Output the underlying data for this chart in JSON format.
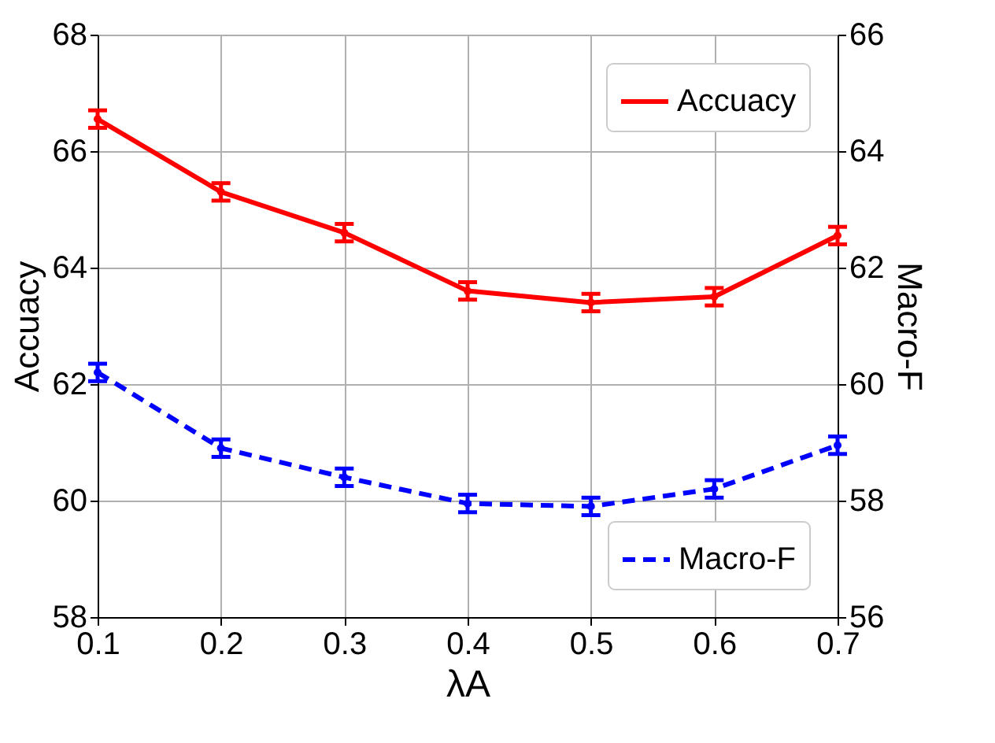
{
  "chart_data": {
    "type": "line",
    "xlabel": "λA",
    "ylabel": "Accuacy",
    "y2label": "Macro-F",
    "x": [
      0.1,
      0.2,
      0.3,
      0.4,
      0.5,
      0.6,
      0.7
    ],
    "series": [
      {
        "name": "Accuacy",
        "color": "#ff0000",
        "line_style": "solid",
        "values": [
          66.55,
          65.3,
          64.6,
          63.6,
          63.4,
          63.5,
          64.55
        ],
        "errors": [
          0.15,
          0.15,
          0.15,
          0.15,
          0.15,
          0.15,
          0.15
        ]
      },
      {
        "name": "Macro-F",
        "color": "#0000ff",
        "line_style": "dashed",
        "axis": "y2",
        "values": [
          60.2,
          58.9,
          58.4,
          57.95,
          57.9,
          58.2,
          58.95
        ],
        "errors": [
          0.15,
          0.15,
          0.15,
          0.15,
          0.15,
          0.15,
          0.15
        ]
      }
    ],
    "xlim": [
      0.1,
      0.7
    ],
    "xticks": [
      0.1,
      0.2,
      0.3,
      0.4,
      0.5,
      0.6,
      0.7
    ],
    "ylim": [
      58,
      68
    ],
    "yticks": [
      58,
      60,
      62,
      64,
      66,
      68
    ],
    "y2lim": [
      56,
      66
    ],
    "y2ticks": [
      56,
      58,
      60,
      62,
      64,
      66
    ],
    "grid": true,
    "marker": "circle",
    "legend": "right"
  }
}
